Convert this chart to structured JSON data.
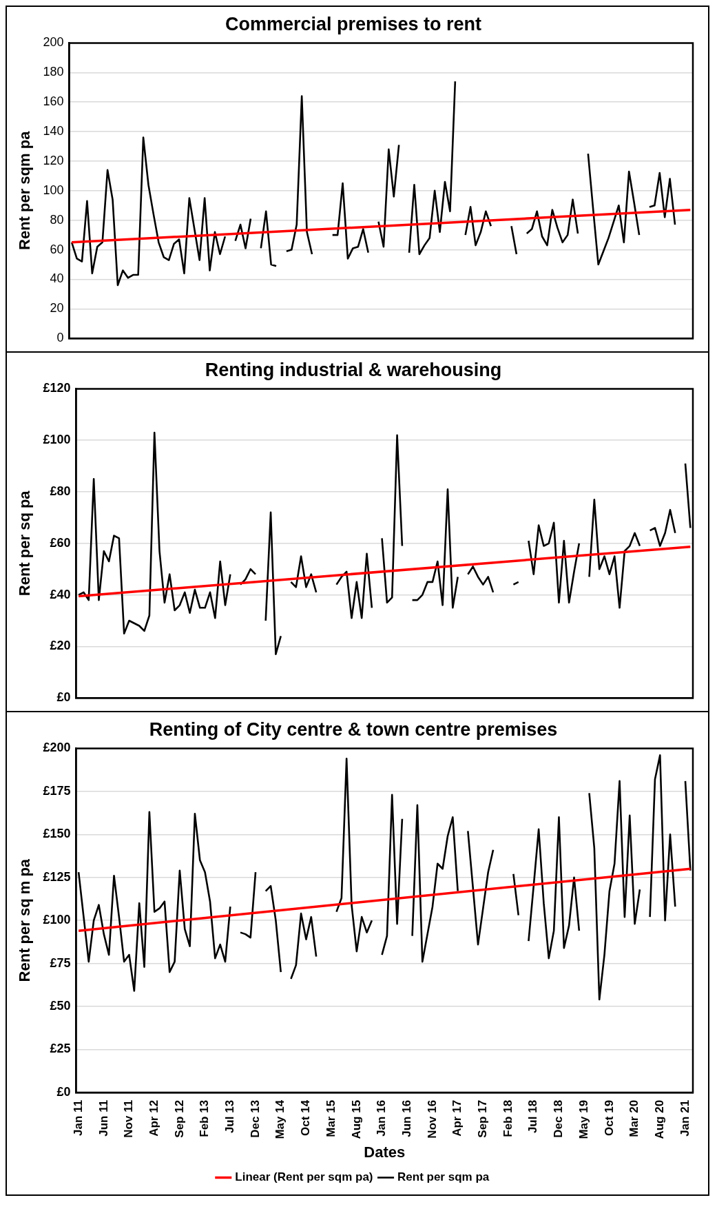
{
  "chart_data": [
    {
      "type": "line",
      "title": "Commercial premises to rent",
      "ylabel": "Rent per sqm pa",
      "tick_labels": "y",
      "grid": "y",
      "legend": false,
      "marker": "none",
      "line_style": "solid",
      "categories": [
        null,
        null,
        null,
        null,
        null,
        null,
        null,
        null,
        null,
        null,
        null,
        null,
        null,
        null,
        null,
        null,
        null,
        null,
        null,
        null,
        null,
        null,
        null,
        null,
        null,
        null,
        null,
        null,
        null,
        null,
        null,
        null,
        null,
        null,
        null,
        null,
        null,
        null,
        null,
        null,
        null,
        null,
        null,
        null,
        null,
        null,
        null,
        null,
        null,
        null,
        null,
        null,
        null,
        null,
        null,
        null,
        null,
        null,
        null,
        null,
        null,
        null,
        null,
        null,
        null,
        null,
        null,
        null,
        null,
        null,
        null,
        null,
        null,
        null,
        null,
        null,
        null,
        null,
        null,
        null,
        null,
        null,
        null,
        null,
        null,
        null,
        null,
        null,
        null,
        null,
        null,
        null,
        null,
        null,
        null,
        null,
        null,
        null,
        null,
        null,
        null,
        null,
        null,
        null,
        null,
        null,
        null,
        null,
        null,
        null,
        null,
        null,
        null,
        null,
        null,
        null,
        null,
        null,
        null,
        null,
        null,
        null
      ],
      "ylim": [
        0,
        200
      ],
      "yticks": [
        0,
        20,
        40,
        60,
        80,
        100,
        120,
        140,
        160,
        180,
        200
      ],
      "series": [
        {
          "color": "#000000",
          "values": [
            65,
            54,
            52,
            93,
            44,
            62,
            65,
            114,
            94,
            36,
            46,
            41,
            43,
            43,
            136,
            104,
            84,
            65,
            55,
            53,
            64,
            67,
            44,
            95,
            74,
            53,
            95,
            46,
            72,
            57,
            69,
            null,
            66,
            77,
            61,
            81,
            null,
            61,
            86,
            50,
            49,
            null,
            59,
            60,
            77,
            164,
            72,
            57,
            null,
            null,
            null,
            70,
            70,
            105,
            54,
            61,
            62,
            74,
            58,
            null,
            79,
            62,
            128,
            96,
            131,
            null,
            58,
            104,
            57,
            63,
            68,
            100,
            72,
            106,
            86,
            174,
            null,
            70,
            89,
            63,
            72,
            86,
            76,
            null,
            null,
            null,
            76,
            57,
            null,
            71,
            74,
            86,
            69,
            63,
            87,
            75,
            65,
            70,
            94,
            71,
            null,
            125,
            87,
            50,
            59,
            68,
            79,
            90,
            65,
            113,
            92,
            70,
            null,
            89,
            90,
            112,
            82,
            108,
            77,
            null,
            null,
            null
          ]
        },
        {
          "type": "line",
          "color": "#ff0000",
          "values": [
            65,
            null,
            null,
            null,
            null,
            null,
            null,
            null,
            null,
            null,
            null,
            null,
            null,
            null,
            null,
            null,
            null,
            null,
            null,
            null,
            null,
            null,
            null,
            null,
            null,
            null,
            null,
            null,
            null,
            null,
            null,
            null,
            null,
            null,
            null,
            null,
            null,
            null,
            null,
            null,
            null,
            null,
            null,
            null,
            null,
            null,
            null,
            null,
            null,
            null,
            null,
            null,
            null,
            null,
            null,
            null,
            null,
            null,
            null,
            null,
            null,
            null,
            null,
            null,
            null,
            null,
            null,
            null,
            null,
            null,
            null,
            null,
            null,
            null,
            null,
            null,
            null,
            null,
            null,
            null,
            null,
            null,
            null,
            null,
            null,
            null,
            null,
            null,
            null,
            null,
            null,
            null,
            null,
            null,
            null,
            null,
            null,
            null,
            null,
            null,
            null,
            null,
            null,
            null,
            null,
            null,
            null,
            null,
            null,
            null,
            null,
            null,
            null,
            null,
            null,
            null,
            null,
            null,
            null,
            null,
            null,
            87
          ]
        }
      ]
    },
    {
      "type": "line",
      "title": "Renting industrial & warehousing",
      "ylabel": "Rent per sq pa",
      "tick_labels": "y",
      "grid": "y",
      "legend": false,
      "marker": "none",
      "line_style": "solid",
      "categories": [
        null,
        null,
        null,
        null,
        null,
        null,
        null,
        null,
        null,
        null,
        null,
        null,
        null,
        null,
        null,
        null,
        null,
        null,
        null,
        null,
        null,
        null,
        null,
        null,
        null,
        null,
        null,
        null,
        null,
        null,
        null,
        null,
        null,
        null,
        null,
        null,
        null,
        null,
        null,
        null,
        null,
        null,
        null,
        null,
        null,
        null,
        null,
        null,
        null,
        null,
        null,
        null,
        null,
        null,
        null,
        null,
        null,
        null,
        null,
        null,
        null,
        null,
        null,
        null,
        null,
        null,
        null,
        null,
        null,
        null,
        null,
        null,
        null,
        null,
        null,
        null,
        null,
        null,
        null,
        null,
        null,
        null,
        null,
        null,
        null,
        null,
        null,
        null,
        null,
        null,
        null,
        null,
        null,
        null,
        null,
        null,
        null,
        null,
        null,
        null,
        null,
        null,
        null,
        null,
        null,
        null,
        null,
        null,
        null,
        null,
        null,
        null,
        null,
        null,
        null,
        null,
        null,
        null,
        null,
        null,
        null,
        null
      ],
      "ylim": [
        0,
        120
      ],
      "yticks": [
        {
          "value": 0,
          "label": "£0"
        },
        {
          "value": 20,
          "label": "£20"
        },
        {
          "value": 40,
          "label": "£40"
        },
        {
          "value": 60,
          "label": "£60"
        },
        {
          "value": 80,
          "label": "£80"
        },
        {
          "value": 100,
          "label": "£100"
        },
        {
          "value": 120,
          "label": "£120"
        }
      ],
      "series": [
        {
          "color": "#000000",
          "values": [
            40,
            41,
            38,
            85,
            38,
            57,
            53,
            63,
            62,
            25,
            30,
            29,
            28,
            26,
            32,
            103,
            57,
            37,
            48,
            34,
            36,
            41,
            33,
            42,
            35,
            35,
            41,
            31,
            53,
            36,
            48,
            null,
            44,
            46,
            50,
            48,
            null,
            30,
            72,
            17,
            24,
            null,
            45,
            43,
            55,
            43,
            48,
            41,
            null,
            null,
            null,
            44,
            47,
            49,
            31,
            45,
            31,
            56,
            35,
            null,
            62,
            37,
            39,
            102,
            59,
            null,
            38,
            38,
            40,
            45,
            45,
            53,
            36,
            81,
            35,
            47,
            null,
            48,
            51,
            47,
            44,
            47,
            41,
            null,
            null,
            null,
            44,
            45,
            null,
            61,
            48,
            67,
            59,
            60,
            68,
            37,
            61,
            37,
            49,
            60,
            null,
            47,
            77,
            50,
            55,
            48,
            55,
            35,
            57,
            59,
            64,
            59,
            null,
            65,
            66,
            59,
            64,
            73,
            64,
            null,
            91,
            66
          ]
        },
        {
          "type": "line",
          "color": "#ff0000",
          "values": [
            39.5,
            null,
            null,
            null,
            null,
            null,
            null,
            null,
            null,
            null,
            null,
            null,
            null,
            null,
            null,
            null,
            null,
            null,
            null,
            null,
            null,
            null,
            null,
            null,
            null,
            null,
            null,
            null,
            null,
            null,
            null,
            null,
            null,
            null,
            null,
            null,
            null,
            null,
            null,
            null,
            null,
            null,
            null,
            null,
            null,
            null,
            null,
            null,
            null,
            null,
            null,
            null,
            null,
            null,
            null,
            null,
            null,
            null,
            null,
            null,
            null,
            null,
            null,
            null,
            null,
            null,
            null,
            null,
            null,
            null,
            null,
            null,
            null,
            null,
            null,
            null,
            null,
            null,
            null,
            null,
            null,
            null,
            null,
            null,
            null,
            null,
            null,
            null,
            null,
            null,
            null,
            null,
            null,
            null,
            null,
            null,
            null,
            null,
            null,
            null,
            null,
            null,
            null,
            null,
            null,
            null,
            null,
            null,
            null,
            null,
            null,
            null,
            null,
            null,
            null,
            null,
            null,
            null,
            null,
            null,
            null,
            58.7
          ]
        }
      ]
    },
    {
      "type": "line",
      "title": "Renting of City centre & town centre premises",
      "xlabel": "Dates",
      "ylabel": "Rent per sq m pa",
      "grid": "y",
      "legend": "bottom",
      "marker": "none",
      "line_style": "solid",
      "categories": [
        "Jan 11",
        null,
        null,
        null,
        null,
        "Jun 11",
        null,
        null,
        null,
        null,
        "Nov 11",
        null,
        null,
        null,
        null,
        "Apr 12",
        null,
        null,
        null,
        null,
        "Sep 12",
        null,
        null,
        null,
        null,
        "Feb 13",
        null,
        null,
        null,
        null,
        "Jul 13",
        null,
        null,
        null,
        null,
        "Dec 13",
        null,
        null,
        null,
        null,
        "May 14",
        null,
        null,
        null,
        null,
        "Oct 14",
        null,
        null,
        null,
        null,
        "Mar 15",
        null,
        null,
        null,
        null,
        "Aug 15",
        null,
        null,
        null,
        null,
        "Jan 16",
        null,
        null,
        null,
        null,
        "Jun 16",
        null,
        null,
        null,
        null,
        "Nov 16",
        null,
        null,
        null,
        null,
        "Apr 17",
        null,
        null,
        null,
        null,
        "Sep 17",
        null,
        null,
        null,
        null,
        "Feb 18",
        null,
        null,
        null,
        null,
        "Jul 18",
        null,
        null,
        null,
        null,
        "Dec 18",
        null,
        null,
        null,
        null,
        "May 19",
        null,
        null,
        null,
        null,
        "Oct 19",
        null,
        null,
        null,
        null,
        "Mar 20",
        null,
        null,
        null,
        null,
        "Aug 20",
        null,
        null,
        null,
        null,
        "Jan 21",
        null
      ],
      "ylim": [
        0,
        200
      ],
      "yticks": [
        {
          "value": 0,
          "label": "£0"
        },
        {
          "value": 25,
          "label": "£25"
        },
        {
          "value": 50,
          "label": "£50"
        },
        {
          "value": 75,
          "label": "£75"
        },
        {
          "value": 100,
          "label": "£100"
        },
        {
          "value": 125,
          "label": "£125"
        },
        {
          "value": 150,
          "label": "£150"
        },
        {
          "value": 175,
          "label": "£175"
        },
        {
          "value": 200,
          "label": "£200"
        }
      ],
      "series": [
        {
          "name": "Rent per sqm pa",
          "color": "#000000",
          "values": [
            128,
            102,
            76,
            100,
            109,
            92,
            80,
            126,
            102,
            76,
            80,
            59,
            110,
            73,
            163,
            105,
            107,
            111,
            70,
            76,
            129,
            95,
            85,
            162,
            135,
            128,
            111,
            78,
            86,
            76,
            108,
            null,
            93,
            92,
            90,
            128,
            null,
            117,
            120,
            100,
            70,
            null,
            66,
            74,
            104,
            89,
            102,
            79,
            null,
            null,
            null,
            105,
            113,
            194,
            109,
            82,
            102,
            93,
            100,
            null,
            80,
            91,
            173,
            98,
            159,
            null,
            91,
            167,
            76,
            92,
            108,
            133,
            130,
            149,
            160,
            117,
            null,
            152,
            119,
            86,
            107,
            128,
            141,
            null,
            null,
            null,
            127,
            103,
            null,
            88,
            120,
            153,
            110,
            78,
            94,
            160,
            84,
            97,
            125,
            94,
            null,
            174,
            142,
            54,
            80,
            117,
            133,
            181,
            102,
            161,
            98,
            118,
            null,
            102,
            182,
            196,
            100,
            150,
            108,
            null,
            181,
            129
          ]
        },
        {
          "name": "Linear (Rent per sqm pa)",
          "type": "line",
          "color": "#ff0000",
          "values": [
            94,
            null,
            null,
            null,
            null,
            null,
            null,
            null,
            null,
            null,
            null,
            null,
            null,
            null,
            null,
            null,
            null,
            null,
            null,
            null,
            null,
            null,
            null,
            null,
            null,
            null,
            null,
            null,
            null,
            null,
            null,
            null,
            null,
            null,
            null,
            null,
            null,
            null,
            null,
            null,
            null,
            null,
            null,
            null,
            null,
            null,
            null,
            null,
            null,
            null,
            null,
            null,
            null,
            null,
            null,
            null,
            null,
            null,
            null,
            null,
            null,
            null,
            null,
            null,
            null,
            null,
            null,
            null,
            null,
            null,
            null,
            null,
            null,
            null,
            null,
            null,
            null,
            null,
            null,
            null,
            null,
            null,
            null,
            null,
            null,
            null,
            null,
            null,
            null,
            null,
            null,
            null,
            null,
            null,
            null,
            null,
            null,
            null,
            null,
            null,
            null,
            null,
            null,
            null,
            null,
            null,
            null,
            null,
            null,
            null,
            null,
            null,
            null,
            null,
            null,
            null,
            null,
            null,
            null,
            null,
            null,
            130
          ]
        }
      ]
    }
  ]
}
